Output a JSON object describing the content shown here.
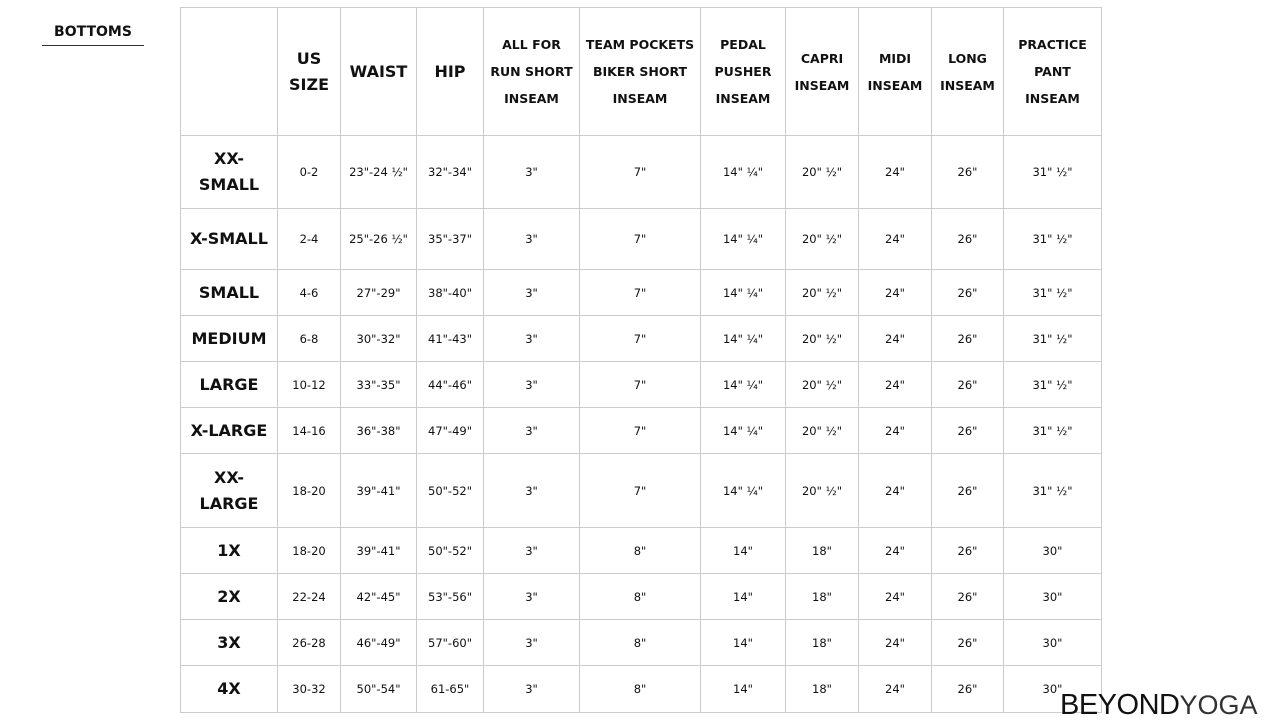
{
  "section_title": "BOTTOMS",
  "brand": {
    "part1": "BEYOND",
    "part2": "YOGA"
  },
  "columns": [
    "",
    "US SIZE",
    "WAIST",
    "HIP",
    "ALL FOR RUN SHORT INSEAM",
    "TEAM POCKETS BIKER SHORT INSEAM",
    "PEDAL PUSHER INSEAM",
    "CAPRI INSEAM",
    "MIDI INSEAM",
    "LONG INSEAM",
    "PRACTICE PANT INSEAM"
  ],
  "rows": [
    [
      "XX-SMALL",
      "0-2",
      "23\"-24 ½\"",
      "32\"-34\"",
      "3\"",
      "7\"",
      "14\" ¼\"",
      "20\" ½\"",
      "24\"",
      "26\"",
      "31\" ½\""
    ],
    [
      "X-SMALL",
      "2-4",
      "25\"-26 ½\"",
      "35\"-37\"",
      "3\"",
      "7\"",
      "14\" ¼\"",
      "20\" ½\"",
      "24\"",
      "26\"",
      "31\" ½\""
    ],
    [
      "SMALL",
      "4-6",
      "27\"-29\"",
      "38\"-40\"",
      "3\"",
      "7\"",
      "14\" ¼\"",
      "20\" ½\"",
      "24\"",
      "26\"",
      "31\" ½\""
    ],
    [
      "MEDIUM",
      "6-8",
      "30\"-32\"",
      "41\"-43\"",
      "3\"",
      "7\"",
      "14\" ¼\"",
      "20\" ½\"",
      "24\"",
      "26\"",
      "31\" ½\""
    ],
    [
      "LARGE",
      "10-12",
      "33\"-35\"",
      "44\"-46\"",
      "3\"",
      "7\"",
      "14\" ¼\"",
      "20\" ½\"",
      "24\"",
      "26\"",
      "31\" ½\""
    ],
    [
      "X-LARGE",
      "14-16",
      "36\"-38\"",
      "47\"-49\"",
      "3\"",
      "7\"",
      "14\" ¼\"",
      "20\" ½\"",
      "24\"",
      "26\"",
      "31\" ½\""
    ],
    [
      "XX-LARGE",
      "18-20",
      "39\"-41\"",
      "50\"-52\"",
      "3\"",
      "7\"",
      "14\" ¼\"",
      "20\" ½\"",
      "24\"",
      "26\"",
      "31\" ½\""
    ],
    [
      "1X",
      "18-20",
      "39\"-41\"",
      "50\"-52\"",
      "3\"",
      "8\"",
      "14\"",
      "18\"",
      "24\"",
      "26\"",
      "30\""
    ],
    [
      "2X",
      "22-24",
      "42\"-45\"",
      "53\"-56\"",
      "3\"",
      "8\"",
      "14\"",
      "18\"",
      "24\"",
      "26\"",
      "30\""
    ],
    [
      "3X",
      "26-28",
      "46\"-49\"",
      "57\"-60\"",
      "3\"",
      "8\"",
      "14\"",
      "18\"",
      "24\"",
      "26\"",
      "30\""
    ],
    [
      "4X",
      "30-32",
      "50\"-54\"",
      "61-65\"",
      "3\"",
      "8\"",
      "14\"",
      "18\"",
      "24\"",
      "26\"",
      "30\""
    ]
  ]
}
